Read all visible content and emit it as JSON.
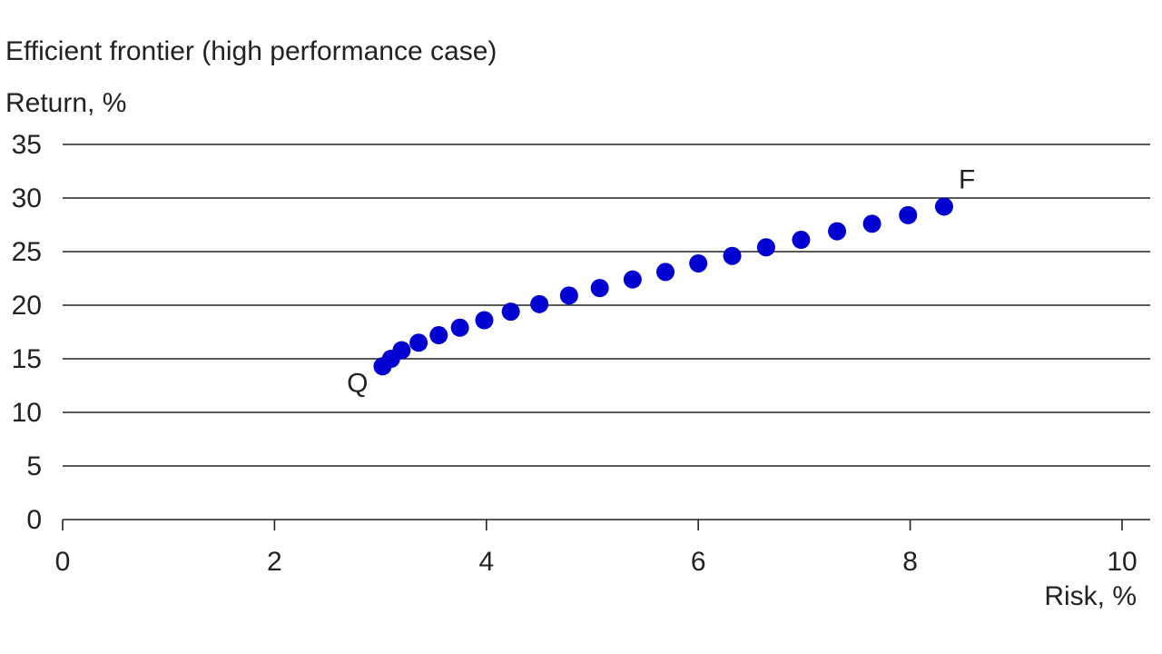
{
  "chart_data": {
    "type": "scatter",
    "title": "Efficient frontier (high performance case)",
    "ylabel": "Return, %",
    "xlabel": "Risk, %",
    "xlim": [
      0,
      10
    ],
    "ylim": [
      0,
      35
    ],
    "xticks": [
      "0",
      "2",
      "4",
      "6",
      "8",
      "10"
    ],
    "yticks": [
      "0",
      "5",
      "10",
      "15",
      "20",
      "25",
      "30",
      "35"
    ],
    "grid": "horizontal",
    "color": "#0000d0",
    "series": [
      {
        "points": [
          {
            "x": 3.02,
            "y": 14.3
          },
          {
            "x": 3.1,
            "y": 15.0
          },
          {
            "x": 3.2,
            "y": 15.8
          },
          {
            "x": 3.36,
            "y": 16.5
          },
          {
            "x": 3.55,
            "y": 17.2
          },
          {
            "x": 3.75,
            "y": 17.9
          },
          {
            "x": 3.98,
            "y": 18.6
          },
          {
            "x": 4.23,
            "y": 19.4
          },
          {
            "x": 4.5,
            "y": 20.1
          },
          {
            "x": 4.78,
            "y": 20.9
          },
          {
            "x": 5.07,
            "y": 21.6
          },
          {
            "x": 5.38,
            "y": 22.4
          },
          {
            "x": 5.69,
            "y": 23.1
          },
          {
            "x": 6.0,
            "y": 23.9
          },
          {
            "x": 6.32,
            "y": 24.6
          },
          {
            "x": 6.64,
            "y": 25.4
          },
          {
            "x": 6.97,
            "y": 26.1
          },
          {
            "x": 7.31,
            "y": 26.9
          },
          {
            "x": 7.64,
            "y": 27.6
          },
          {
            "x": 7.98,
            "y": 28.4
          },
          {
            "x": 8.32,
            "y": 29.2
          }
        ]
      }
    ],
    "annotations": [
      {
        "text": "Q",
        "x": 3.02,
        "y": 14.3,
        "position": "lower-left"
      },
      {
        "text": "F",
        "x": 8.32,
        "y": 29.2,
        "position": "upper-right"
      }
    ]
  }
}
